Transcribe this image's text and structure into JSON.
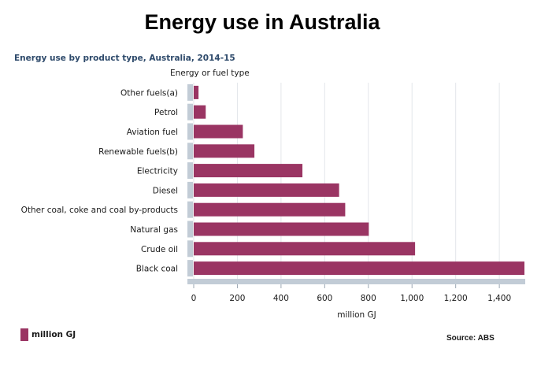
{
  "title": "Energy use in Australia",
  "chart_data": {
    "type": "bar",
    "orientation": "horizontal",
    "subtitle": "Energy use by product type, Australia, 2014-15",
    "category_axis_title": "Energy or fuel type",
    "value_axis_title": "million GJ",
    "categories": [
      "Other fuels(a)",
      "Petrol",
      "Aviation fuel",
      "Renewable fuels(b)",
      "Electricity",
      "Diesel",
      "Other coal, coke and coal by-products",
      "Natural gas",
      "Crude oil",
      "Black coal"
    ],
    "series": [
      {
        "name": "million GJ",
        "values": [
          22,
          55,
          225,
          278,
          498,
          666,
          694,
          802,
          1014,
          1515
        ]
      }
    ],
    "xlim": [
      0,
      1515
    ],
    "ticks": [
      0,
      200,
      400,
      600,
      800,
      1000,
      1200,
      1400
    ],
    "tick_labels": [
      "0",
      "200",
      "400",
      "600",
      "800",
      "1,000",
      "1,200",
      "1,400"
    ],
    "grid": true,
    "legend_position": "bottom-left",
    "bar_color": "#9a3563"
  },
  "legend": {
    "label": "million GJ"
  },
  "source": "Source: ABS"
}
